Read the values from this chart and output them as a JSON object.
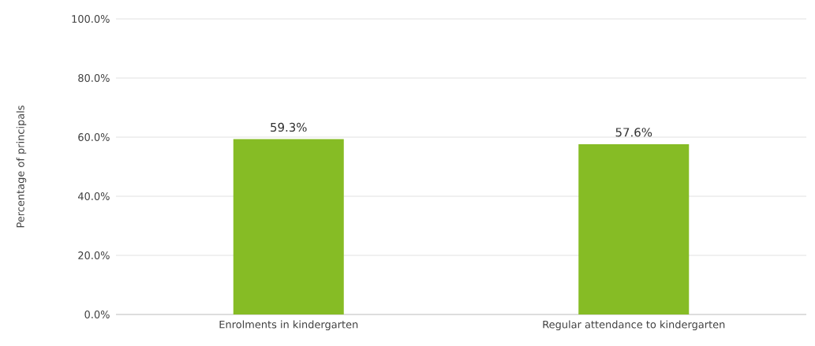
{
  "chart_data": {
    "type": "bar",
    "ylabel": "Percentage of principals",
    "categories": [
      "Enrolments in kindergarten",
      "Regular attendance to kindergarten"
    ],
    "values": [
      59.3,
      57.6
    ],
    "value_labels": [
      "59.3%",
      "57.6%"
    ],
    "color": "#86bc25",
    "ylim": [
      0,
      100
    ],
    "yticks": [
      {
        "value": 0,
        "label": "0.0%"
      },
      {
        "value": 20,
        "label": "20.0%"
      },
      {
        "value": 40,
        "label": "40.0%"
      },
      {
        "value": 60,
        "label": "60.0%"
      },
      {
        "value": 80,
        "label": "80.0%"
      },
      {
        "value": 100,
        "label": "100.0%"
      }
    ],
    "grid": "y"
  }
}
